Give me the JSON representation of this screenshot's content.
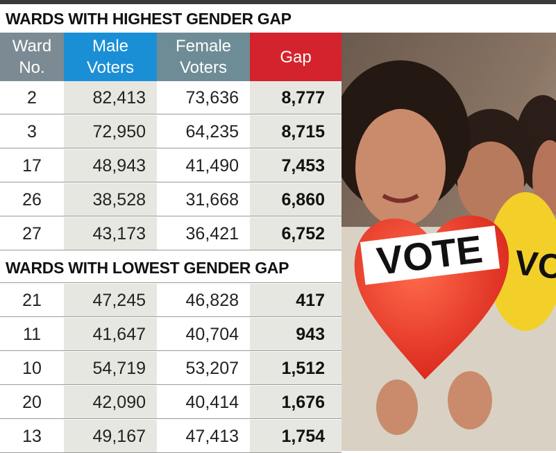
{
  "highest": {
    "title": "WARDS WITH HIGHEST GENDER GAP",
    "headers": [
      "Ward No.",
      "Male Voters",
      "Female Voters",
      "Gap"
    ],
    "rows": [
      [
        "2",
        "82,413",
        "73,636",
        "8,777"
      ],
      [
        "3",
        "72,950",
        "64,235",
        "8,715"
      ],
      [
        "17",
        "48,943",
        "41,490",
        "7,453"
      ],
      [
        "26",
        "38,528",
        "31,668",
        "6,860"
      ],
      [
        "27",
        "43,173",
        "36,421",
        "6,752"
      ]
    ]
  },
  "lowest": {
    "title": "WARDS WITH LOWEST GENDER GAP",
    "rows": [
      [
        "21",
        "47,245",
        "46,828",
        "417"
      ],
      [
        "11",
        "41,647",
        "40,704",
        "943"
      ],
      [
        "10",
        "54,719",
        "53,207",
        "1,512"
      ],
      [
        "20",
        "42,090",
        "40,414",
        "1,676"
      ],
      [
        "13",
        "49,167",
        "47,413",
        "1,754"
      ]
    ]
  },
  "photo": {
    "balloon_text": "VOTE",
    "second_balloon_text": "VO"
  }
}
